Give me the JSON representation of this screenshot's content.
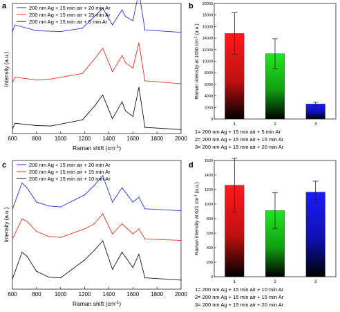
{
  "panels": {
    "a": {
      "letter": "a",
      "xlabel": "Raman shift (cm",
      "xlabel_sup": "-1",
      "xlabel_end": ")",
      "ylabel": "Intensity (a.u.)",
      "legend": [
        "200 nm Ag + 15 min air + 20 min Ar",
        "200 nm Ag + 15 min air + 15 min Ar",
        "200 nm Ag + 15 min air + 5 min Ar"
      ]
    },
    "b": {
      "letter": "b",
      "ylabel": "Raman intensity at 1650 cm",
      "ylabel_sup": "-1",
      "ylabel_end": " (a.u.)",
      "notes": [
        "1= 200 nm Ag + 15 min air + 5 min Ar",
        "2= 200 nm Ag + 15 min air + 15 min Ar",
        "3= 200 nm Ag + 15 min air + 20 min Ar"
      ]
    },
    "c": {
      "letter": "c",
      "xlabel": "Raman shift (cm",
      "xlabel_sup": "-1",
      "xlabel_end": ")",
      "ylabel": "Intensity (a.u.)",
      "legend": [
        "200 nm Ag + 15 min air + 20 min Ar",
        "200 nm Ag + 15 min air + 15 min Ar",
        "200 nm Ag + 15 min air + 10 min Ar"
      ]
    },
    "d": {
      "letter": "d",
      "ylabel": "Raman intensity at 621 cm",
      "ylabel_sup": "-1",
      "ylabel_end": " (a.u.)",
      "notes": [
        "1= 200 nm Ag + 15 min air + 10 min Ar",
        "2= 200 nm Ag + 15 min air + 15 min Ar",
        "3= 200 nm Ag + 15 min air + 20 min Ar"
      ]
    }
  },
  "colors": {
    "blue": "#1f2fd8",
    "red": "#e0301e",
    "black": "#111111",
    "bar_red": "#ff1a1a",
    "bar_green": "#22e622",
    "bar_blue": "#1a1aff"
  },
  "chart_data": [
    {
      "panel": "a",
      "type": "line",
      "xlabel": "Raman shift (cm-1)",
      "ylabel": "Intensity (a.u.)",
      "xlim": [
        600,
        2000
      ],
      "xticks": [
        600,
        800,
        1000,
        1200,
        1400,
        1600,
        1800,
        2000
      ],
      "y_ticks_shown": false,
      "series": [
        {
          "name": "200 nm Ag + 15 min air + 20 min Ar",
          "color": "#1f2fd8",
          "x": [
            600,
            621,
            800,
            1000,
            1180,
            1280,
            1350,
            1430,
            1510,
            1540,
            1600,
            1650,
            1700,
            2000
          ],
          "y": [
            0.02,
            0.1,
            0.03,
            0.02,
            0.06,
            0.2,
            0.3,
            0.1,
            0.28,
            0.2,
            0.15,
            0.5,
            0.04,
            0.01
          ]
        },
        {
          "name": "200 nm Ag + 15 min air + 15 min Ar",
          "color": "#e0301e",
          "x": [
            600,
            621,
            800,
            920,
            1180,
            1280,
            1350,
            1430,
            1510,
            1540,
            1600,
            1650,
            1700,
            2000
          ],
          "y": [
            0.05,
            0.2,
            0.12,
            0.15,
            0.3,
            0.7,
            1.0,
            0.35,
            0.8,
            0.6,
            0.45,
            1.15,
            0.1,
            0.02
          ]
        },
        {
          "name": "200 nm Ag + 15 min air + 5 min Ar",
          "color": "#111111",
          "x": [
            600,
            621,
            800,
            920,
            1180,
            1280,
            1350,
            1430,
            1510,
            1540,
            1600,
            1650,
            1700,
            2000
          ],
          "y": [
            0.05,
            0.3,
            0.2,
            0.18,
            0.45,
            1.05,
            1.55,
            0.5,
            1.25,
            0.85,
            0.6,
            1.9,
            0.12,
            0.02
          ]
        }
      ]
    },
    {
      "panel": "b",
      "type": "bar",
      "categories": [
        "1",
        "2",
        "3"
      ],
      "values": [
        14800,
        11300,
        2600
      ],
      "errors": [
        3600,
        2600,
        300
      ],
      "ylim": [
        0,
        20000
      ],
      "yticks": [
        0,
        2000,
        4000,
        6000,
        8000,
        10000,
        12000,
        14000,
        16000,
        18000,
        20000
      ],
      "ylabel": "Raman intensity at 1650 cm-1 (a.u.)"
    },
    {
      "panel": "c",
      "type": "line",
      "xlabel": "Raman shift (cm-1)",
      "ylabel": "Intensity (a.u.)",
      "xlim": [
        600,
        2000
      ],
      "xticks": [
        600,
        800,
        1000,
        1200,
        1400,
        1600,
        1800,
        2000
      ],
      "y_ticks_shown": false,
      "series": [
        {
          "name": "200 nm Ag + 15 min air + 20 min Ar",
          "color": "#1f2fd8",
          "x": [
            600,
            680,
            720,
            800,
            900,
            1000,
            1200,
            1280,
            1350,
            1430,
            1510,
            1600,
            1650,
            1700,
            2000
          ],
          "y": [
            0.05,
            0.6,
            0.5,
            0.2,
            0.12,
            0.1,
            0.35,
            0.55,
            0.75,
            0.2,
            0.5,
            0.2,
            0.3,
            0.06,
            0.02
          ]
        },
        {
          "name": "200 nm Ag + 15 min air + 15 min Ar",
          "color": "#e0301e",
          "x": [
            600,
            680,
            720,
            800,
            900,
            1000,
            1200,
            1280,
            1350,
            1430,
            1510,
            1600,
            1650,
            1700,
            2000
          ],
          "y": [
            0.05,
            0.45,
            0.4,
            0.2,
            0.1,
            0.08,
            0.25,
            0.35,
            0.55,
            0.15,
            0.35,
            0.15,
            0.25,
            0.05,
            0.02
          ]
        },
        {
          "name": "200 nm Ag + 15 min air + 10 min Ar",
          "color": "#111111",
          "x": [
            600,
            680,
            720,
            800,
            900,
            1000,
            1200,
            1280,
            1350,
            1430,
            1510,
            1600,
            1650,
            1700,
            2000
          ],
          "y": [
            0.05,
            0.75,
            0.65,
            0.25,
            0.1,
            0.08,
            0.55,
            0.8,
            1.05,
            0.3,
            0.75,
            0.35,
            0.7,
            0.08,
            0.02
          ]
        }
      ]
    },
    {
      "panel": "d",
      "type": "bar",
      "categories": [
        "1",
        "2",
        "3"
      ],
      "values": [
        1260,
        910,
        1165
      ],
      "errors": [
        370,
        245,
        150
      ],
      "ylim": [
        0,
        1600
      ],
      "yticks": [
        0,
        200,
        400,
        600,
        800,
        1000,
        1200,
        1400,
        1600
      ],
      "ylabel": "Raman intensity at 621 cm-1 (a.u.)"
    }
  ]
}
